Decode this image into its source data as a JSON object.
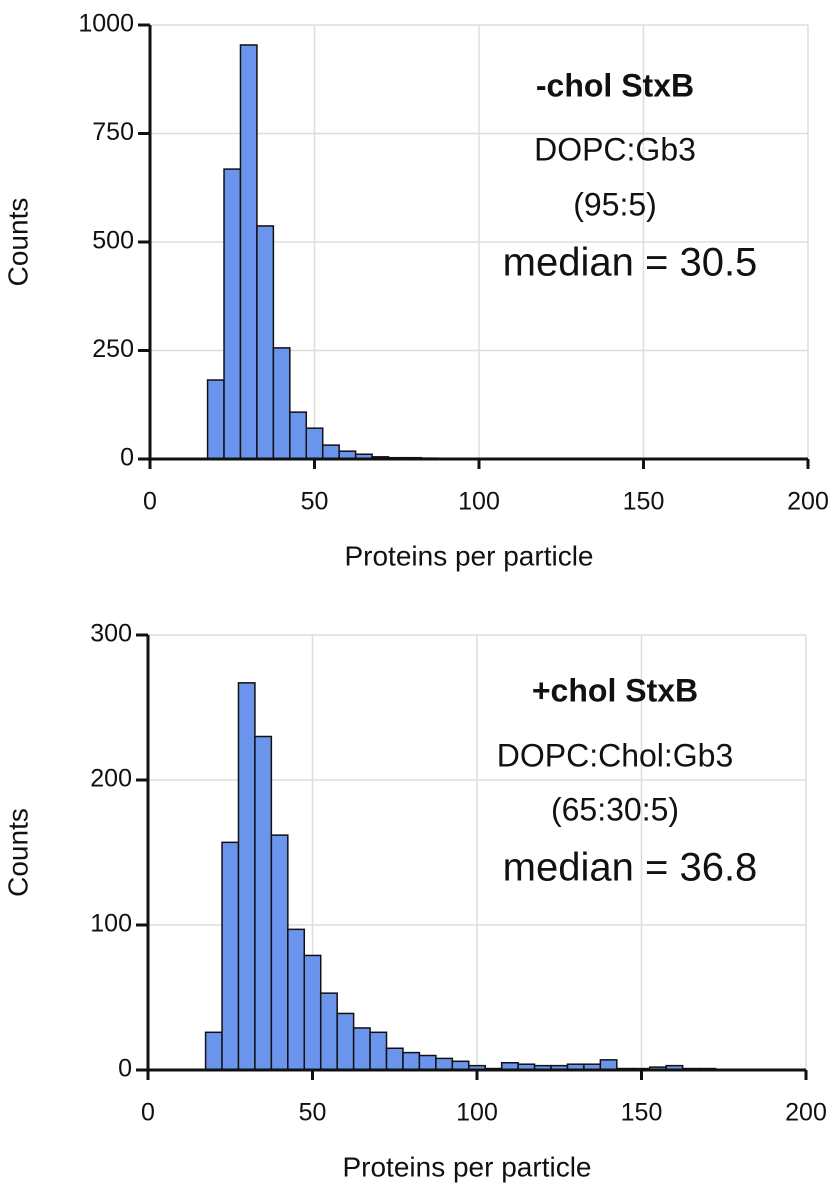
{
  "chart_data": [
    {
      "type": "histogram",
      "xlabel": "Proteins per particle",
      "ylabel": "Counts",
      "annotations": [
        "-chol StxB",
        "DOPC:Gb3",
        "(95:5)",
        "median = 30.5"
      ],
      "bins": [
        17.5,
        22.5,
        27.5,
        32.5,
        37.5,
        42.5,
        47.5,
        52.5,
        57.5,
        62.5,
        67.5,
        72.5,
        77.5,
        82.5,
        87.5
      ],
      "counts": [
        182,
        668,
        954,
        537,
        256,
        108,
        71,
        32,
        18,
        11,
        5,
        3,
        3,
        2
      ],
      "color": "#6b95ec",
      "xlim": [
        0,
        200
      ],
      "xticks": [
        0,
        50,
        100,
        150,
        200
      ],
      "ylim": [
        0,
        1000
      ],
      "yticks": [
        0,
        250,
        500,
        750,
        1000
      ],
      "grid": true
    },
    {
      "type": "histogram",
      "xlabel": "Proteins per particle",
      "ylabel": "Counts",
      "annotations": [
        "+chol StxB",
        "DOPC:Chol:Gb3",
        "(65:30:5)",
        "median = 36.8"
      ],
      "bins": [
        17.5,
        22.5,
        27.5,
        32.5,
        37.5,
        42.5,
        47.5,
        52.5,
        57.5,
        62.5,
        67.5,
        72.5,
        77.5,
        82.5,
        87.5,
        92.5,
        97.5,
        102.5,
        107.5,
        112.5,
        117.5,
        122.5,
        127.5,
        132.5,
        137.5,
        142.5,
        147.5,
        152.5,
        157.5,
        162.5,
        167.5,
        172.5,
        177.5
      ],
      "counts": [
        26,
        157,
        267,
        230,
        162,
        97,
        79,
        53,
        39,
        29,
        26,
        15,
        12,
        10,
        8,
        6,
        3,
        1,
        5,
        4,
        3,
        3,
        4,
        4,
        7,
        1,
        1,
        2,
        3,
        1,
        1,
        0
      ],
      "color": "#6b95ec",
      "xlim": [
        0,
        200
      ],
      "xticks": [
        0,
        50,
        100,
        150,
        200
      ],
      "ylim": [
        0,
        300
      ],
      "yticks": [
        0,
        100,
        200,
        300
      ],
      "grid": true
    }
  ]
}
